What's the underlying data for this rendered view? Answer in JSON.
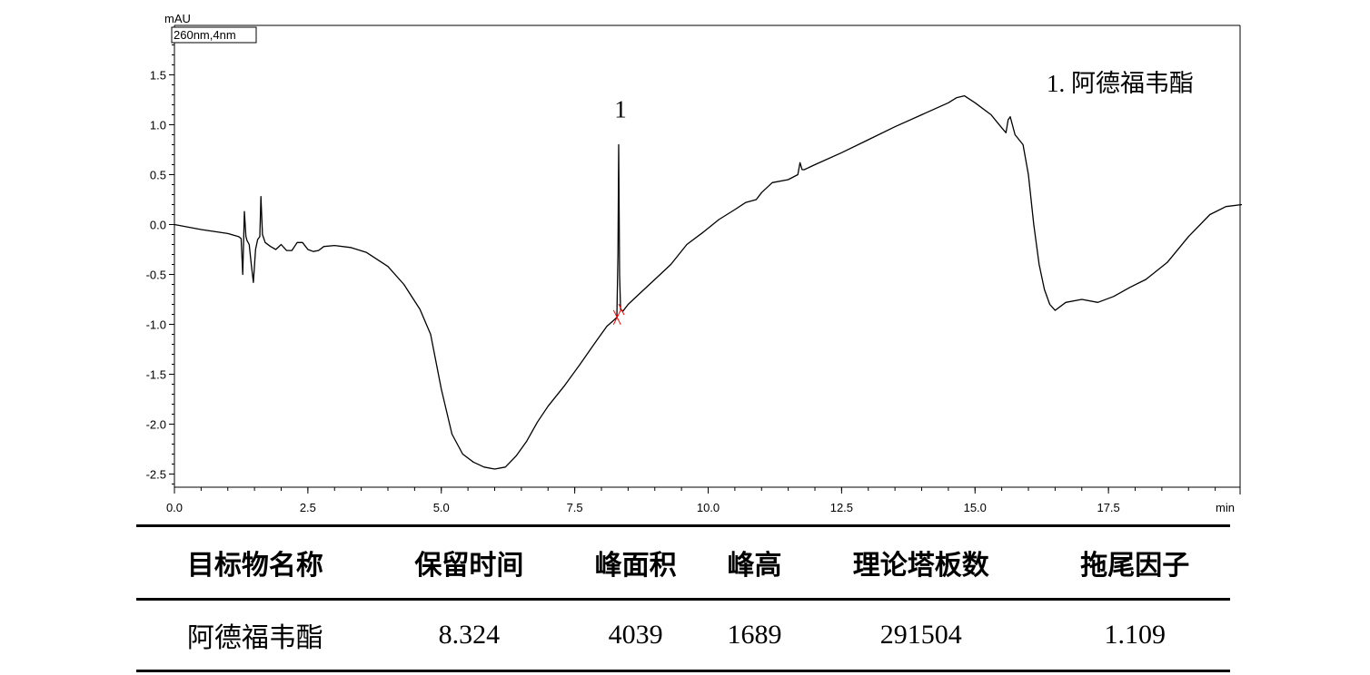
{
  "chart_data": {
    "type": "line",
    "ylabel": "mAU",
    "channel": "260nm,4nm",
    "xunit": "min",
    "xlim": [
      0,
      20.0
    ],
    "ylim": [
      -2.65,
      2.0
    ],
    "xticks": [
      "0.0",
      "2.5",
      "5.0",
      "7.5",
      "10.0",
      "12.5",
      "15.0",
      "17.5"
    ],
    "yticks": [
      "1.5",
      "1.0",
      "0.5",
      "0.0",
      "-0.5",
      "-1.0",
      "-1.5",
      "-2.0",
      "-2.5"
    ],
    "legend_text": "1. 阿德福韦酯",
    "peak_label": {
      "text": "1",
      "x": 8.324,
      "y": 0.8
    },
    "series": [
      {
        "x": [
          0.0,
          0.5,
          1.0,
          1.2,
          1.25,
          1.28,
          1.31,
          1.34,
          1.36,
          1.4,
          1.44,
          1.48,
          1.52,
          1.56,
          1.6,
          1.62,
          1.65,
          1.7,
          1.8,
          1.9,
          2.0,
          2.1,
          2.2,
          2.3,
          2.4,
          2.5,
          2.6,
          2.7,
          2.8,
          3.0,
          3.3,
          3.6,
          4.0,
          4.3,
          4.6,
          4.8,
          5.0,
          5.2,
          5.4,
          5.6,
          5.8,
          6.0,
          6.2,
          6.4,
          6.6,
          6.8,
          7.0,
          7.3,
          7.6,
          7.9,
          8.1,
          8.25,
          8.29,
          8.31,
          8.324,
          8.34,
          8.36,
          8.4,
          8.5,
          8.7,
          9.0,
          9.3,
          9.6,
          9.9,
          10.2,
          10.5,
          10.7,
          10.9,
          11.0,
          11.2,
          11.5,
          11.68,
          11.72,
          11.76,
          11.8,
          12.0,
          12.5,
          13.0,
          13.5,
          14.0,
          14.5,
          14.65,
          14.8,
          15.0,
          15.3,
          15.5,
          15.58,
          15.62,
          15.66,
          15.75,
          15.9,
          16.0,
          16.1,
          16.2,
          16.3,
          16.4,
          16.5,
          16.7,
          17.0,
          17.3,
          17.6,
          17.9,
          18.2,
          18.6,
          19.0,
          19.4,
          19.7,
          20.0
        ],
        "values": [
          0.0,
          -0.05,
          -0.09,
          -0.12,
          -0.14,
          -0.5,
          0.13,
          -0.12,
          -0.16,
          -0.2,
          -0.4,
          -0.58,
          -0.25,
          -0.15,
          -0.12,
          0.28,
          -0.1,
          -0.18,
          -0.22,
          -0.25,
          -0.2,
          -0.26,
          -0.26,
          -0.18,
          -0.18,
          -0.25,
          -0.27,
          -0.26,
          -0.22,
          -0.21,
          -0.23,
          -0.28,
          -0.42,
          -0.6,
          -0.85,
          -1.1,
          -1.65,
          -2.1,
          -2.3,
          -2.38,
          -2.43,
          -2.45,
          -2.43,
          -2.32,
          -2.17,
          -1.98,
          -1.82,
          -1.62,
          -1.4,
          -1.17,
          -1.02,
          -0.95,
          -0.93,
          -0.3,
          0.8,
          -0.5,
          -0.85,
          -0.87,
          -0.8,
          -0.7,
          -0.55,
          -0.4,
          -0.2,
          -0.08,
          0.05,
          0.15,
          0.22,
          0.25,
          0.32,
          0.42,
          0.45,
          0.5,
          0.62,
          0.55,
          0.55,
          0.6,
          0.72,
          0.85,
          0.98,
          1.1,
          1.22,
          1.27,
          1.29,
          1.22,
          1.1,
          0.97,
          0.92,
          1.05,
          1.08,
          0.9,
          0.8,
          0.5,
          0.0,
          -0.4,
          -0.65,
          -0.8,
          -0.86,
          -0.78,
          -0.75,
          -0.78,
          -0.72,
          -0.63,
          -0.55,
          -0.38,
          -0.12,
          0.1,
          0.18,
          0.2
        ]
      }
    ]
  },
  "table": {
    "headers": [
      "目标物名称",
      "保留时间",
      "峰面积",
      "峰高",
      "理论塔板数",
      "拖尾因子"
    ],
    "rows": [
      [
        "阿德福韦酯",
        "8.324",
        "4039",
        "1689",
        "291504",
        "1.109"
      ]
    ]
  },
  "colors": {
    "trace": "#000000",
    "baseline_marker": "#ff0000"
  }
}
